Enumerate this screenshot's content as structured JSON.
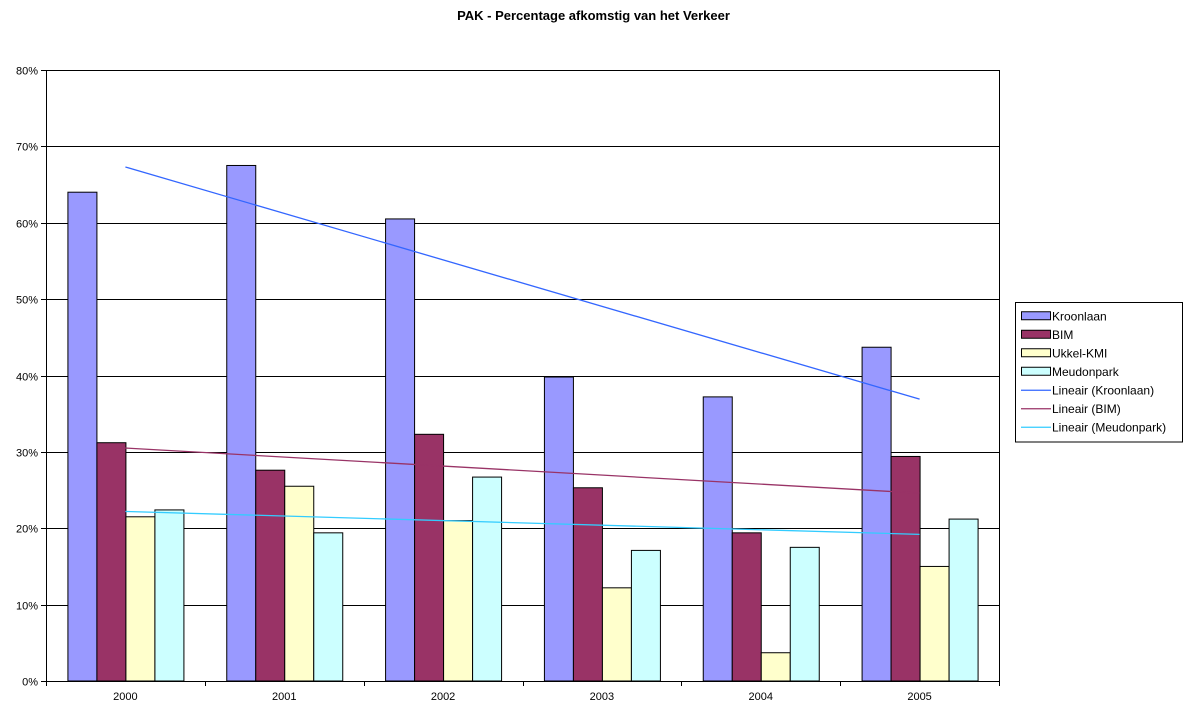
{
  "chart_data": {
    "type": "bar",
    "title": "PAK - Percentage afkomstig van het Verkeer",
    "categories": [
      "2000",
      "2001",
      "2002",
      "2003",
      "2004",
      "2005"
    ],
    "ylim": [
      0,
      0.8
    ],
    "yticks": [
      0,
      0.1,
      0.2,
      0.3,
      0.4,
      0.5,
      0.6,
      0.7,
      0.8
    ],
    "ytick_labels": [
      "0%",
      "10%",
      "20%",
      "30%",
      "40%",
      "50%",
      "60%",
      "70%",
      "80%"
    ],
    "grid": true,
    "legend_position": "right",
    "series": [
      {
        "name": "Kroonlaan",
        "color": "#9999ff",
        "values": [
          0.64,
          0.675,
          0.605,
          0.398,
          0.372,
          0.437
        ]
      },
      {
        "name": "BIM",
        "color": "#993366",
        "values": [
          0.312,
          0.276,
          0.323,
          0.253,
          0.194,
          0.294
        ]
      },
      {
        "name": "Ukkel-KMI",
        "color": "#ffffcc",
        "values": [
          0.215,
          0.255,
          0.21,
          0.122,
          0.037,
          0.15
        ]
      },
      {
        "name": "Meudonpark",
        "color": "#ccffff",
        "values": [
          0.224,
          0.194,
          0.267,
          0.171,
          0.175,
          0.212
        ]
      }
    ],
    "trendlines": [
      {
        "name": "Lineair (Kroonlaan)",
        "color": "#3366ff",
        "values": [
          0.673,
          0.612,
          0.551,
          0.491,
          0.43,
          0.369
        ]
      },
      {
        "name": "Lineair (BIM)",
        "color": "#993366",
        "values": [
          0.305,
          0.293,
          0.281,
          0.27,
          0.258,
          0.246
        ]
      },
      {
        "name": "Lineair (Meudonpark)",
        "color": "#33ccff",
        "values": [
          0.222,
          0.216,
          0.21,
          0.204,
          0.198,
          0.192
        ]
      }
    ]
  }
}
